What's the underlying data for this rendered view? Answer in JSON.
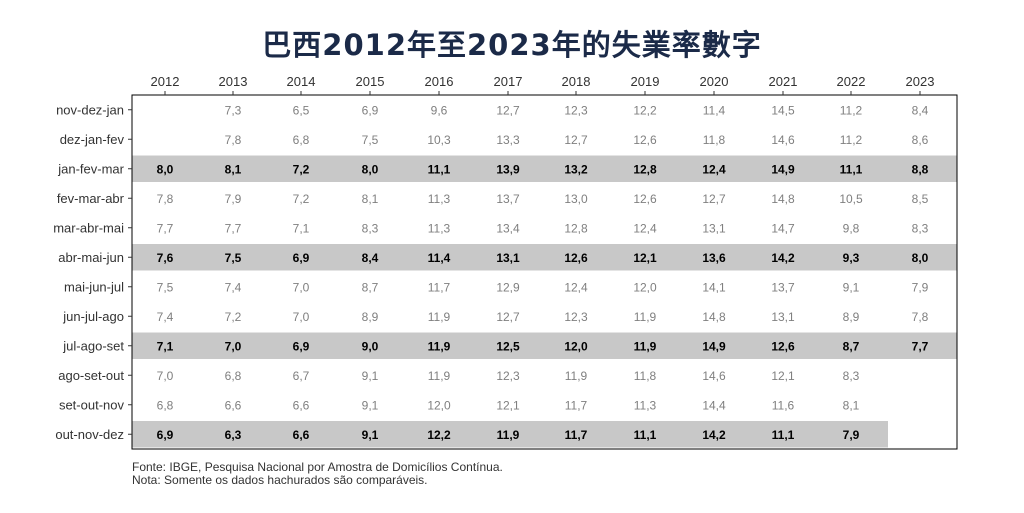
{
  "title": "巴西2012年至2023年的失業率數字",
  "source_note": "Fonte: IBGE, Pesquisa Nacional por Amostra de Domicílios Contínua.",
  "comparability_note": " Nota: Somente os dados hachurados são comparáveis.",
  "colors": {
    "title": "#1b2a48",
    "shade": "#c8c8c8",
    "text_bold": "#000000",
    "text_light": "#7f7f7f",
    "border": "#000000"
  },
  "chart_data": {
    "type": "table",
    "columns": [
      "2012",
      "2013",
      "2014",
      "2015",
      "2016",
      "2017",
      "2018",
      "2019",
      "2020",
      "2021",
      "2022",
      "2023"
    ],
    "rows": [
      {
        "label": "nov-dez-jan",
        "shaded": false,
        "values": [
          "",
          "7,3",
          "6,5",
          "6,9",
          "9,6",
          "12,7",
          "12,3",
          "12,2",
          "11,4",
          "14,5",
          "11,2",
          "8,4"
        ]
      },
      {
        "label": "dez-jan-fev",
        "shaded": false,
        "values": [
          "",
          "7,8",
          "6,8",
          "7,5",
          "10,3",
          "13,3",
          "12,7",
          "12,6",
          "11,8",
          "14,6",
          "11,2",
          "8,6"
        ]
      },
      {
        "label": "jan-fev-mar",
        "shaded": true,
        "values": [
          "8,0",
          "8,1",
          "7,2",
          "8,0",
          "11,1",
          "13,9",
          "13,2",
          "12,8",
          "12,4",
          "14,9",
          "11,1",
          "8,8"
        ]
      },
      {
        "label": "fev-mar-abr",
        "shaded": false,
        "values": [
          "7,8",
          "7,9",
          "7,2",
          "8,1",
          "11,3",
          "13,7",
          "13,0",
          "12,6",
          "12,7",
          "14,8",
          "10,5",
          "8,5"
        ]
      },
      {
        "label": "mar-abr-mai",
        "shaded": false,
        "values": [
          "7,7",
          "7,7",
          "7,1",
          "8,3",
          "11,3",
          "13,4",
          "12,8",
          "12,4",
          "13,1",
          "14,7",
          "9,8",
          "8,3"
        ]
      },
      {
        "label": "abr-mai-jun",
        "shaded": true,
        "values": [
          "7,6",
          "7,5",
          "6,9",
          "8,4",
          "11,4",
          "13,1",
          "12,6",
          "12,1",
          "13,6",
          "14,2",
          "9,3",
          "8,0"
        ]
      },
      {
        "label": "mai-jun-jul",
        "shaded": false,
        "values": [
          "7,5",
          "7,4",
          "7,0",
          "8,7",
          "11,7",
          "12,9",
          "12,4",
          "12,0",
          "14,1",
          "13,7",
          "9,1",
          "7,9"
        ]
      },
      {
        "label": "jun-jul-ago",
        "shaded": false,
        "values": [
          "7,4",
          "7,2",
          "7,0",
          "8,9",
          "11,9",
          "12,7",
          "12,3",
          "11,9",
          "14,8",
          "13,1",
          "8,9",
          "7,8"
        ]
      },
      {
        "label": "jul-ago-set",
        "shaded": true,
        "values": [
          "7,1",
          "7,0",
          "6,9",
          "9,0",
          "11,9",
          "12,5",
          "12,0",
          "11,9",
          "14,9",
          "12,6",
          "8,7",
          "7,7"
        ]
      },
      {
        "label": "ago-set-out",
        "shaded": false,
        "values": [
          "7,0",
          "6,8",
          "6,7",
          "9,1",
          "11,9",
          "12,3",
          "11,9",
          "11,8",
          "14,6",
          "12,1",
          "8,3",
          ""
        ]
      },
      {
        "label": "set-out-nov",
        "shaded": false,
        "values": [
          "6,8",
          "6,6",
          "6,6",
          "9,1",
          "12,0",
          "12,1",
          "11,7",
          "11,3",
          "14,4",
          "11,6",
          "8,1",
          ""
        ]
      },
      {
        "label": "out-nov-dez",
        "shaded": true,
        "values": [
          "6,9",
          "6,3",
          "6,6",
          "9,1",
          "12,2",
          "11,9",
          "11,7",
          "11,1",
          "14,2",
          "11,1",
          "7,9",
          ""
        ]
      }
    ]
  }
}
